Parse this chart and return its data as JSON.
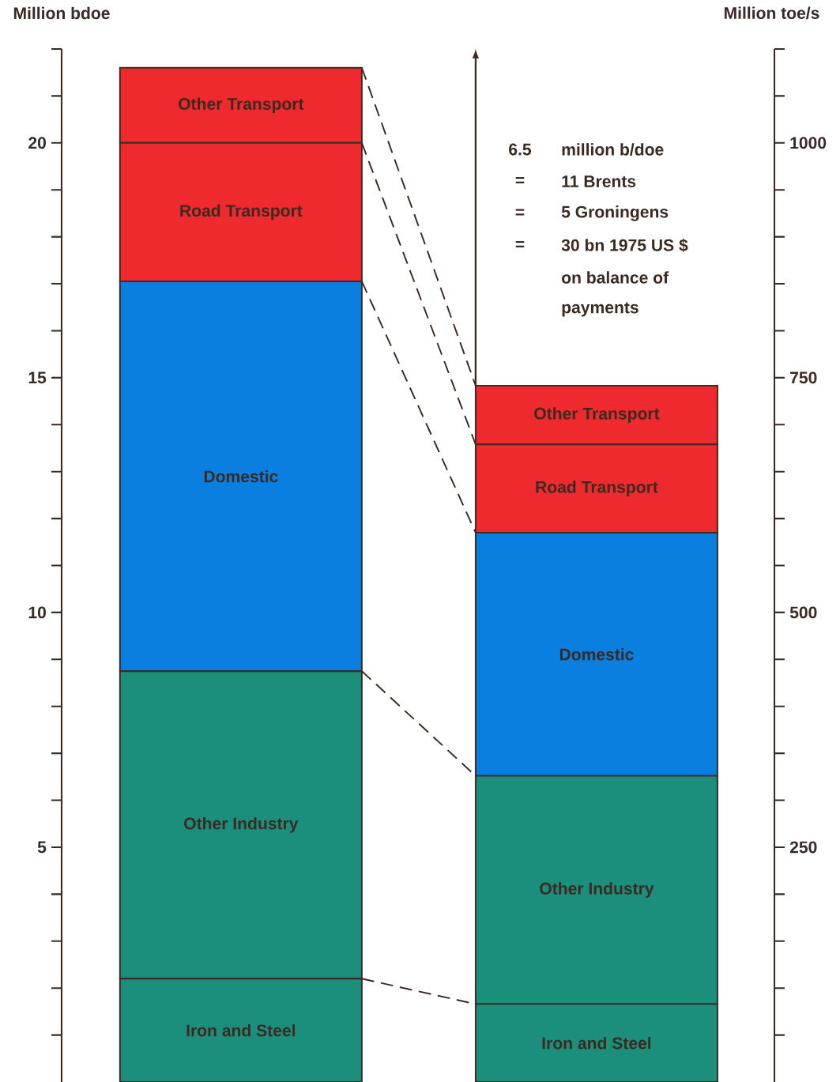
{
  "chart_data": {
    "type": "bar",
    "stacked": true,
    "categories": [
      null,
      null
    ],
    "ylabel": "Million bdoe",
    "y2label": "Million toe/s",
    "ylim": [
      0,
      22
    ],
    "yticks": [
      {
        "value": 1,
        "label": null
      },
      {
        "value": 2,
        "label": null
      },
      {
        "value": 3,
        "label": null
      },
      {
        "value": 4,
        "label": null
      },
      5,
      {
        "value": 6,
        "label": null
      },
      {
        "value": 7,
        "label": null
      },
      {
        "value": 8,
        "label": null
      },
      {
        "value": 9,
        "label": null
      },
      10,
      {
        "value": 11,
        "label": null
      },
      {
        "value": 12,
        "label": null
      },
      {
        "value": 13,
        "label": null
      },
      {
        "value": 14,
        "label": null
      },
      15,
      {
        "value": 16,
        "label": null
      },
      {
        "value": 17,
        "label": null
      },
      {
        "value": 18,
        "label": null
      },
      {
        "value": 19,
        "label": null
      },
      20,
      {
        "value": 21,
        "label": null
      },
      {
        "value": 22,
        "label": null
      }
    ],
    "y2lim": [
      0,
      1100
    ],
    "y2ticks": [
      {
        "value": 50,
        "label": null
      },
      {
        "value": 100,
        "label": null
      },
      {
        "value": 150,
        "label": null
      },
      {
        "value": 200,
        "label": null
      },
      250,
      {
        "value": 300,
        "label": null
      },
      {
        "value": 350,
        "label": null
      },
      {
        "value": 400,
        "label": null
      },
      {
        "value": 450,
        "label": null
      },
      500,
      {
        "value": 550,
        "label": null
      },
      {
        "value": 600,
        "label": null
      },
      {
        "value": 650,
        "label": null
      },
      {
        "value": 700,
        "label": null
      },
      750,
      {
        "value": 800,
        "label": null
      },
      {
        "value": 850,
        "label": null
      },
      {
        "value": 900,
        "label": null
      },
      {
        "value": 950,
        "label": null
      },
      1000,
      {
        "value": 1050,
        "label": null
      },
      {
        "value": 1100,
        "label": null
      }
    ],
    "series": [
      {
        "name": "Iron and Steel",
        "color": "#1c8f7c",
        "values": [
          2.2,
          1.66
        ]
      },
      {
        "name": "Other Industry",
        "color": "#1c8f7c",
        "values": [
          6.55,
          4.86
        ]
      },
      {
        "name": "Domestic",
        "color": "#0a7fe0",
        "values": [
          8.3,
          5.18
        ]
      },
      {
        "name": "Road Transport",
        "color": "#ee2a2e",
        "values": [
          2.95,
          1.88
        ]
      },
      {
        "name": "Other Transport",
        "color": "#ee2a2e",
        "values": [
          1.6,
          1.25
        ]
      }
    ],
    "annotations": [
      "6.5",
      "million b/doe",
      "=",
      "11 Brents",
      "=",
      "5 Groningens",
      "=",
      "30 bn 1975 US $",
      "on balance of",
      "payments"
    ]
  }
}
